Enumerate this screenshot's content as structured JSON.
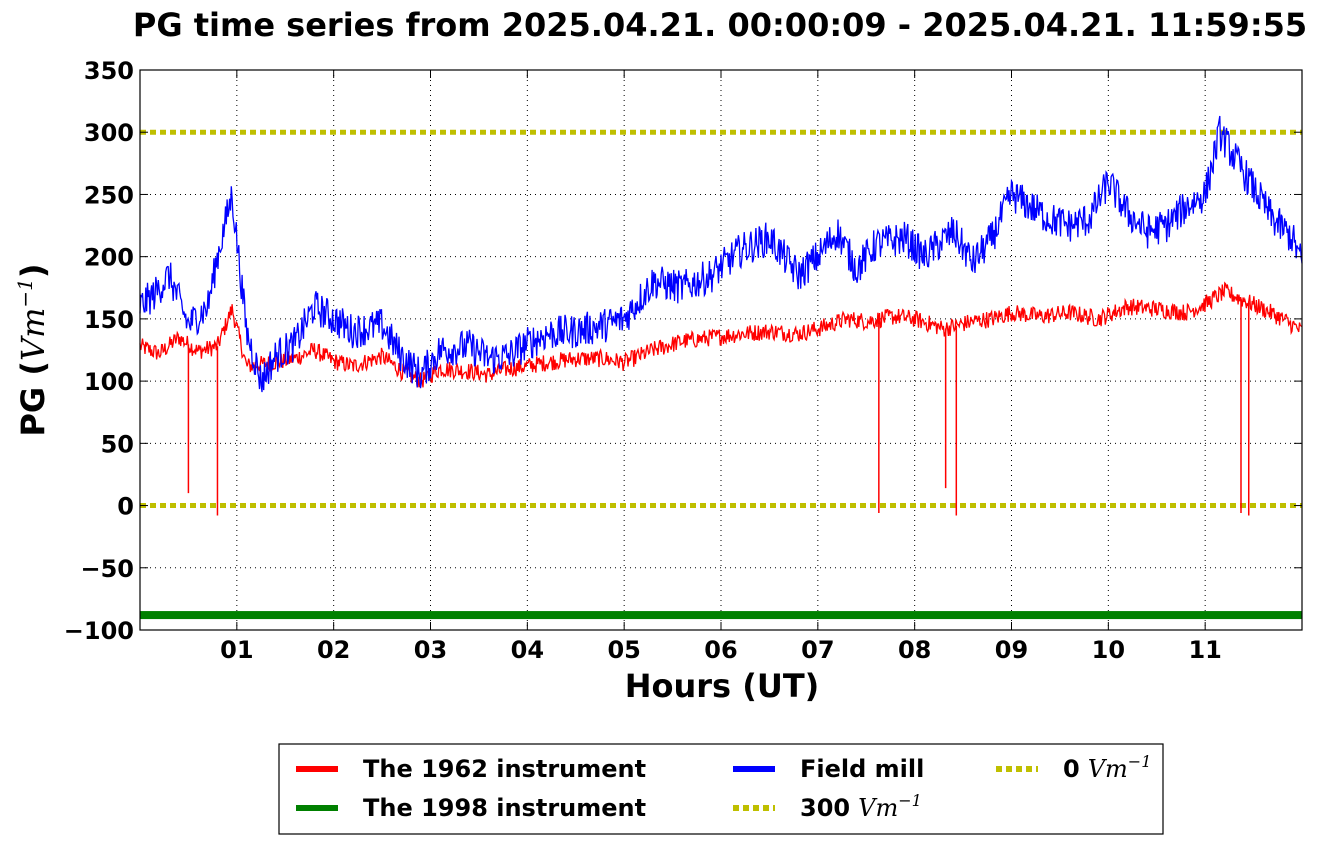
{
  "chart_data": {
    "type": "line",
    "title": "PG time series from 2025.04.21. 00:00:09 - 2025.04.21. 11:59:55",
    "xlabel": "Hours (UT)",
    "ylabel_prefix": "PG (",
    "ylabel_math": "Vm",
    "ylabel_exp": "−1",
    "ylabel_suffix": ")",
    "xlim": [
      0,
      12
    ],
    "ylim": [
      -100,
      350
    ],
    "grid": true,
    "xticks": [
      1,
      2,
      3,
      4,
      5,
      6,
      7,
      8,
      9,
      10,
      11
    ],
    "xtick_labels": [
      "01",
      "02",
      "03",
      "04",
      "05",
      "06",
      "07",
      "08",
      "09",
      "10",
      "11"
    ],
    "yticks": [
      -100,
      -50,
      0,
      50,
      100,
      150,
      200,
      250,
      300,
      350
    ],
    "ytick_labels": [
      "−100",
      "−50",
      "0",
      "50",
      "100",
      "150",
      "200",
      "250",
      "300",
      "350"
    ],
    "legend_position": "below-center",
    "series": [
      {
        "name": "The 1962 instrument",
        "color": "#ff0000",
        "x": [
          0.0,
          0.2,
          0.4,
          0.6,
          0.8,
          0.95,
          1.1,
          1.3,
          1.6,
          1.8,
          2.0,
          2.2,
          2.5,
          2.7,
          2.9,
          3.1,
          3.4,
          3.6,
          3.8,
          4.0,
          4.2,
          4.5,
          4.8,
          5.0,
          5.3,
          5.6,
          5.9,
          6.2,
          6.5,
          6.8,
          7.0,
          7.3,
          7.5,
          7.8,
          8.0,
          8.3,
          8.6,
          8.8,
          9.0,
          9.3,
          9.6,
          9.9,
          10.2,
          10.5,
          10.8,
          11.0,
          11.2,
          11.4,
          11.6,
          11.8,
          12.0
        ],
        "y": [
          128,
          122,
          135,
          124,
          128,
          158,
          112,
          114,
          118,
          125,
          116,
          112,
          120,
          108,
          100,
          110,
          108,
          105,
          110,
          112,
          115,
          118,
          118,
          115,
          125,
          132,
          135,
          138,
          140,
          138,
          142,
          150,
          148,
          152,
          150,
          142,
          148,
          150,
          155,
          152,
          155,
          150,
          160,
          158,
          155,
          162,
          172,
          165,
          158,
          150,
          140
        ]
      },
      {
        "name": "The 1998 instrument",
        "color": "#008000",
        "x": [
          0,
          12
        ],
        "y": [
          -88,
          -88
        ]
      },
      {
        "name": "Field mill",
        "color": "#0000ff",
        "x": [
          0.0,
          0.15,
          0.3,
          0.5,
          0.7,
          0.8,
          0.95,
          1.1,
          1.25,
          1.4,
          1.6,
          1.8,
          2.0,
          2.2,
          2.5,
          2.7,
          2.9,
          3.1,
          3.4,
          3.6,
          3.8,
          4.0,
          4.2,
          4.5,
          4.8,
          5.0,
          5.3,
          5.6,
          5.9,
          6.2,
          6.5,
          6.8,
          7.0,
          7.2,
          7.4,
          7.6,
          7.9,
          8.1,
          8.4,
          8.6,
          8.8,
          9.0,
          9.2,
          9.4,
          9.6,
          9.8,
          10.0,
          10.2,
          10.4,
          10.6,
          10.8,
          11.0,
          11.15,
          11.3,
          11.5,
          11.7,
          11.9,
          12.0
        ],
        "y": [
          160,
          170,
          185,
          145,
          160,
          200,
          250,
          140,
          100,
          120,
          130,
          160,
          150,
          140,
          145,
          120,
          105,
          125,
          128,
          118,
          120,
          130,
          138,
          140,
          145,
          150,
          180,
          175,
          185,
          205,
          215,
          185,
          200,
          220,
          190,
          210,
          215,
          200,
          220,
          195,
          215,
          250,
          240,
          230,
          225,
          230,
          260,
          235,
          220,
          225,
          240,
          250,
          300,
          280,
          255,
          230,
          215,
          195
        ]
      }
    ],
    "dropouts": [
      {
        "x": 0.5,
        "y_min": 10
      },
      {
        "x": 0.8,
        "y_min": -8
      },
      {
        "x": 7.63,
        "y_min": -6
      },
      {
        "x": 8.32,
        "y_min": 14
      },
      {
        "x": 8.43,
        "y_min": -8
      },
      {
        "x": 11.37,
        "y_min": -6
      },
      {
        "x": 11.45,
        "y_min": -8
      }
    ],
    "reference_lines": [
      {
        "name": "300",
        "value": 300,
        "color": "#bfbf00",
        "style": "dotted"
      },
      {
        "name": "0",
        "value": 0,
        "color": "#bfbf00",
        "style": "dotted"
      }
    ],
    "legend": [
      {
        "label": "The 1962 instrument",
        "math": "",
        "exp": "",
        "color": "#ff0000",
        "style": "solid"
      },
      {
        "label": "The 1998 instrument",
        "math": "",
        "exp": "",
        "color": "#008000",
        "style": "solid"
      },
      {
        "label": "Field mill",
        "math": "",
        "exp": "",
        "color": "#0000ff",
        "style": "solid"
      },
      {
        "label": "300",
        "math": "Vm",
        "exp": "−1",
        "color": "#bfbf00",
        "style": "dotted"
      },
      {
        "label": "0",
        "math": "Vm",
        "exp": "−1",
        "color": "#bfbf00",
        "style": "dotted"
      }
    ]
  }
}
